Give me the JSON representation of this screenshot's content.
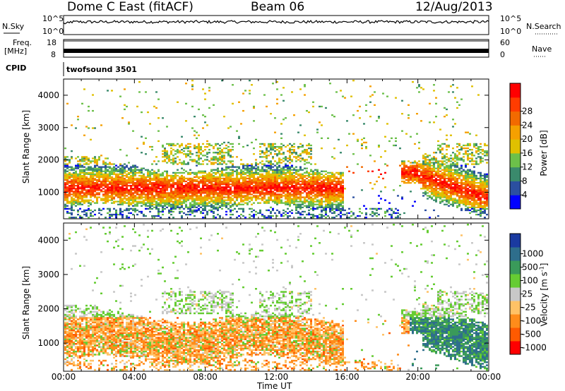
{
  "header": {
    "site": "Dome C East (fitACF)",
    "beam": "Beam 06",
    "date": "12/Aug/2013"
  },
  "status_panels": {
    "nsky_label": "N.Sky",
    "nsky_ticks": [
      "10^5",
      "10^0"
    ],
    "nsearch_label": "N.Search",
    "nsearch_ticks": [
      "10^5",
      "10^0"
    ],
    "freq_label_1": "Freq.",
    "freq_label_2": "[MHz]",
    "freq_ticks": [
      "18",
      "8"
    ],
    "nave_label": "Nave",
    "nave_ticks": [
      "60",
      "0"
    ],
    "cpid_label": "CPID",
    "cpid_value": "twofsound 3501"
  },
  "colors": {
    "power": [
      "#0000ff",
      "#2b4fa0",
      "#3a8a6c",
      "#6cc04a",
      "#e0c000",
      "#f5a000",
      "#f26a00",
      "#ff3c00",
      "#ff0000"
    ],
    "velocity": [
      "#ff0000",
      "#ff5a00",
      "#ff8c1a",
      "#ffc266",
      "#c8c8c8",
      "#66cc33",
      "#3a9a5a",
      "#2e6e8c",
      "#1a3aa0"
    ]
  },
  "chart_data": [
    {
      "type": "heatmap",
      "title": "Power",
      "ylabel": "Slant Range [km]",
      "xlim": [
        "00:00",
        "24:00"
      ],
      "ylim": [
        180,
        4500
      ],
      "yticks": [
        "1000",
        "2000",
        "3000",
        "4000"
      ],
      "colorbar_label": "Power [dB]",
      "colorbar_ticks": [
        "4",
        "8",
        "12",
        "16",
        "20",
        "24",
        "28"
      ]
    },
    {
      "type": "heatmap",
      "title": "Velocity",
      "ylabel": "Slant Range [km]",
      "xlabel": "Time UT",
      "xlim": [
        "00:00",
        "24:00"
      ],
      "ylim": [
        180,
        4500
      ],
      "xticks": [
        "00:00",
        "04:00",
        "08:00",
        "12:00",
        "16:00",
        "20:00",
        "00:00"
      ],
      "yticks": [
        "1000",
        "2000",
        "3000",
        "4000"
      ],
      "colorbar_label": "Velocity [m s",
      "colorbar_label_sup": "-1",
      "colorbar_label_end": "]",
      "colorbar_ticks": [
        "1000",
        "500",
        "100",
        "25",
        "-25",
        "-100",
        "-500",
        "-1000"
      ]
    }
  ]
}
